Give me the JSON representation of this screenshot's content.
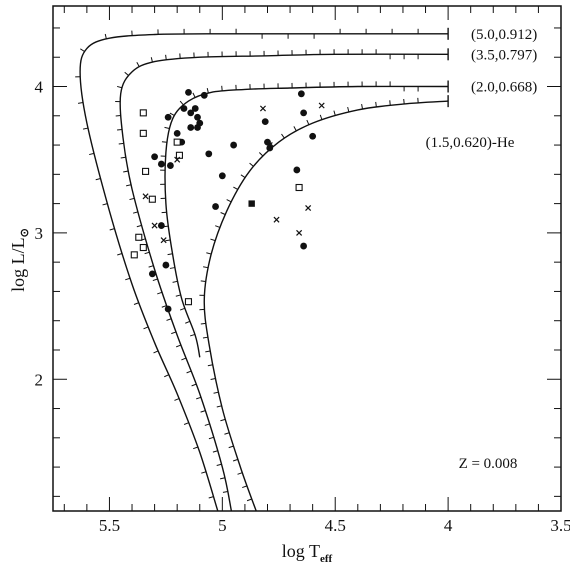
{
  "chart_data": {
    "type": "line",
    "title": "",
    "xlabel": {
      "main": "log T",
      "sub": "eff"
    },
    "ylabel": {
      "main": "log L/L",
      "sub": "⊙"
    },
    "xlim": [
      5.75,
      3.5
    ],
    "ylim": [
      1.1,
      4.55
    ],
    "x_ticks": [
      5.5,
      5,
      4.5,
      4,
      3.5
    ],
    "x_tick_labels": [
      "5.5",
      "5",
      "4.5",
      "4",
      "3.5"
    ],
    "y_ticks": [
      2,
      3,
      4
    ],
    "y_tick_labels": [
      "2",
      "3",
      "4"
    ],
    "x_reversed": true,
    "grid": false,
    "annotation": "Z = 0.008",
    "series": [
      {
        "name": "(5.0,0.912)",
        "x": [
          4.0,
          4.5,
          5.0,
          5.3,
          5.5,
          5.6,
          5.63,
          5.6,
          5.5,
          5.4,
          5.3,
          5.2,
          5.1,
          5.02
        ],
        "y": [
          4.36,
          4.36,
          4.36,
          4.355,
          4.33,
          4.26,
          4.1,
          3.75,
          3.15,
          2.65,
          2.25,
          1.9,
          1.5,
          1.1
        ]
      },
      {
        "name": "(3.5,0.797)",
        "x": [
          4.0,
          4.5,
          4.8,
          5.1,
          5.3,
          5.4,
          5.45,
          5.44,
          5.4,
          5.3,
          5.2,
          5.1,
          5.0,
          4.96
        ],
        "y": [
          4.22,
          4.22,
          4.21,
          4.2,
          4.17,
          4.1,
          3.95,
          3.65,
          3.3,
          2.75,
          2.3,
          1.9,
          1.4,
          1.1
        ]
      },
      {
        "name": "(2.0,0.668)",
        "x": [
          4.0,
          4.4,
          4.7,
          4.9,
          5.05,
          5.15,
          5.22,
          5.25,
          5.25,
          5.22,
          5.18,
          5.12,
          5.1
        ],
        "y": [
          4.0,
          4.0,
          3.99,
          3.98,
          3.96,
          3.9,
          3.78,
          3.55,
          3.2,
          2.85,
          2.55,
          2.3,
          2.15
        ]
      },
      {
        "name": "(1.5,0.620)-He",
        "x": [
          4.0,
          4.2,
          4.4,
          4.6,
          4.75,
          4.88,
          4.98,
          5.05,
          5.08,
          5.06,
          5.0,
          4.92,
          4.85
        ],
        "y": [
          3.9,
          3.88,
          3.84,
          3.75,
          3.62,
          3.42,
          3.15,
          2.85,
          2.55,
          2.25,
          1.8,
          1.4,
          1.1
        ]
      }
    ],
    "points_filled_circle": [
      [
        5.15,
        3.96
      ],
      [
        5.08,
        3.94
      ],
      [
        5.12,
        3.85
      ],
      [
        5.17,
        3.85
      ],
      [
        5.14,
        3.82
      ],
      [
        5.11,
        3.79
      ],
      [
        5.1,
        3.75
      ],
      [
        5.11,
        3.72
      ],
      [
        5.14,
        3.72
      ],
      [
        5.2,
        3.68
      ],
      [
        5.24,
        3.79
      ],
      [
        5.3,
        3.52
      ],
      [
        5.27,
        3.47
      ],
      [
        5.23,
        3.46
      ],
      [
        5.18,
        3.62
      ],
      [
        5.27,
        3.05
      ],
      [
        5.25,
        2.78
      ],
      [
        5.31,
        2.72
      ],
      [
        5.24,
        2.48
      ],
      [
        5.06,
        3.54
      ],
      [
        5.03,
        3.18
      ],
      [
        5.0,
        3.39
      ],
      [
        4.95,
        3.6
      ],
      [
        4.8,
        3.62
      ],
      [
        4.79,
        3.58
      ],
      [
        4.81,
        3.76
      ],
      [
        4.65,
        3.95
      ],
      [
        4.64,
        3.82
      ],
      [
        4.6,
        3.66
      ],
      [
        4.67,
        3.43
      ],
      [
        4.64,
        2.91
      ]
    ],
    "points_open_square": [
      [
        5.35,
        3.82
      ],
      [
        5.35,
        3.68
      ],
      [
        5.34,
        3.42
      ],
      [
        5.31,
        3.23
      ],
      [
        5.37,
        2.97
      ],
      [
        5.35,
        2.9
      ],
      [
        5.39,
        2.85
      ],
      [
        5.2,
        3.62
      ],
      [
        5.19,
        3.53
      ],
      [
        5.15,
        2.53
      ],
      [
        4.66,
        3.31
      ]
    ],
    "points_filled_square": [
      [
        4.87,
        3.2
      ]
    ],
    "points_cross": [
      [
        5.34,
        3.25
      ],
      [
        5.3,
        3.05
      ],
      [
        5.26,
        2.95
      ],
      [
        5.2,
        3.5
      ],
      [
        4.82,
        3.85
      ],
      [
        4.79,
        3.6
      ],
      [
        4.76,
        3.09
      ],
      [
        4.66,
        3.0
      ],
      [
        4.62,
        3.17
      ],
      [
        4.56,
        3.87
      ]
    ]
  }
}
